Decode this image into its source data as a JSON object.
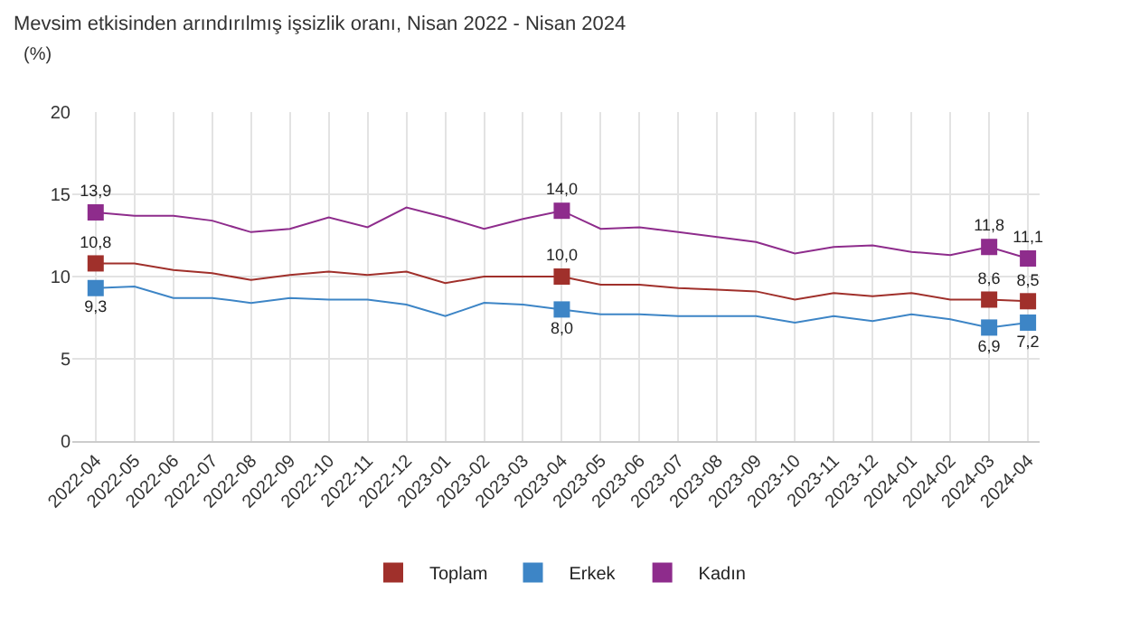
{
  "chart_data": {
    "type": "line",
    "title": "Mevsim etkisinden arındırılmış işsizlik oranı, Nisan 2022 - Nisan 2024",
    "ylabel": "(%)",
    "categories": [
      "2022-04",
      "2022-05",
      "2022-06",
      "2022-07",
      "2022-08",
      "2022-09",
      "2022-10",
      "2022-11",
      "2022-12",
      "2023-01",
      "2023-02",
      "2023-03",
      "2023-04",
      "2023-05",
      "2023-06",
      "2023-07",
      "2023-08",
      "2023-09",
      "2023-10",
      "2023-11",
      "2023-12",
      "2024-01",
      "2024-02",
      "2024-03",
      "2024-04"
    ],
    "series": [
      {
        "name": "Toplam",
        "color": "#a0302b",
        "values": [
          10.8,
          10.8,
          10.4,
          10.2,
          9.8,
          10.1,
          10.3,
          10.1,
          10.3,
          9.6,
          10.0,
          10.0,
          10.0,
          9.5,
          9.5,
          9.3,
          9.2,
          9.1,
          8.6,
          9.0,
          8.8,
          9.0,
          8.6,
          8.6,
          8.5
        ],
        "value_labels": [
          "10,8",
          null,
          null,
          null,
          null,
          null,
          null,
          null,
          null,
          null,
          null,
          null,
          "10,0",
          null,
          null,
          null,
          null,
          null,
          null,
          null,
          null,
          null,
          null,
          "8,6",
          "8,5"
        ]
      },
      {
        "name": "Erkek",
        "color": "#3d85c6",
        "values": [
          9.3,
          9.4,
          8.7,
          8.7,
          8.4,
          8.7,
          8.6,
          8.6,
          8.3,
          7.6,
          8.4,
          8.3,
          8.0,
          7.7,
          7.7,
          7.6,
          7.6,
          7.6,
          7.2,
          7.6,
          7.3,
          7.7,
          7.4,
          6.9,
          7.2
        ],
        "value_labels": [
          "9,3",
          null,
          null,
          null,
          null,
          null,
          null,
          null,
          null,
          null,
          null,
          null,
          "8,0",
          null,
          null,
          null,
          null,
          null,
          null,
          null,
          null,
          null,
          null,
          "6,9",
          "7,2"
        ]
      },
      {
        "name": "Kadın",
        "color": "#8e2c8c",
        "values": [
          13.9,
          13.7,
          13.7,
          13.4,
          12.7,
          12.9,
          13.6,
          13.0,
          14.2,
          13.6,
          12.9,
          13.5,
          14.0,
          12.9,
          13.0,
          12.7,
          12.4,
          12.1,
          11.4,
          11.8,
          11.9,
          11.5,
          11.3,
          11.8,
          11.1
        ],
        "value_labels": [
          "13,9",
          null,
          null,
          null,
          null,
          null,
          null,
          null,
          null,
          null,
          null,
          null,
          "14,0",
          null,
          null,
          null,
          null,
          null,
          null,
          null,
          null,
          null,
          null,
          "11,8",
          "11,1"
        ]
      }
    ],
    "ylim": [
      0,
      20
    ],
    "yticks": [
      0,
      5,
      10,
      15,
      20
    ],
    "grid": true,
    "legend": "bottom",
    "line_style": "solid"
  }
}
